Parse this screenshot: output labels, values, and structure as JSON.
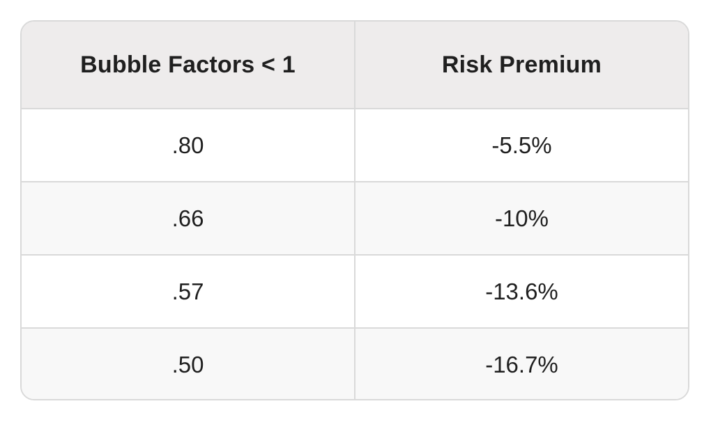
{
  "table": {
    "headers": [
      "Bubble Factors < 1",
      "Risk Premium"
    ],
    "rows": [
      [
        ".80",
        "-5.5%"
      ],
      [
        ".66",
        "-10%"
      ],
      [
        ".57",
        "-13.6%"
      ],
      [
        ".50",
        "-16.7%"
      ]
    ]
  },
  "colors": {
    "header_background": "#eeecec",
    "border": "#d9d9d9",
    "alt_row_background": "#f8f8f8",
    "text": "#1f1f1f"
  }
}
